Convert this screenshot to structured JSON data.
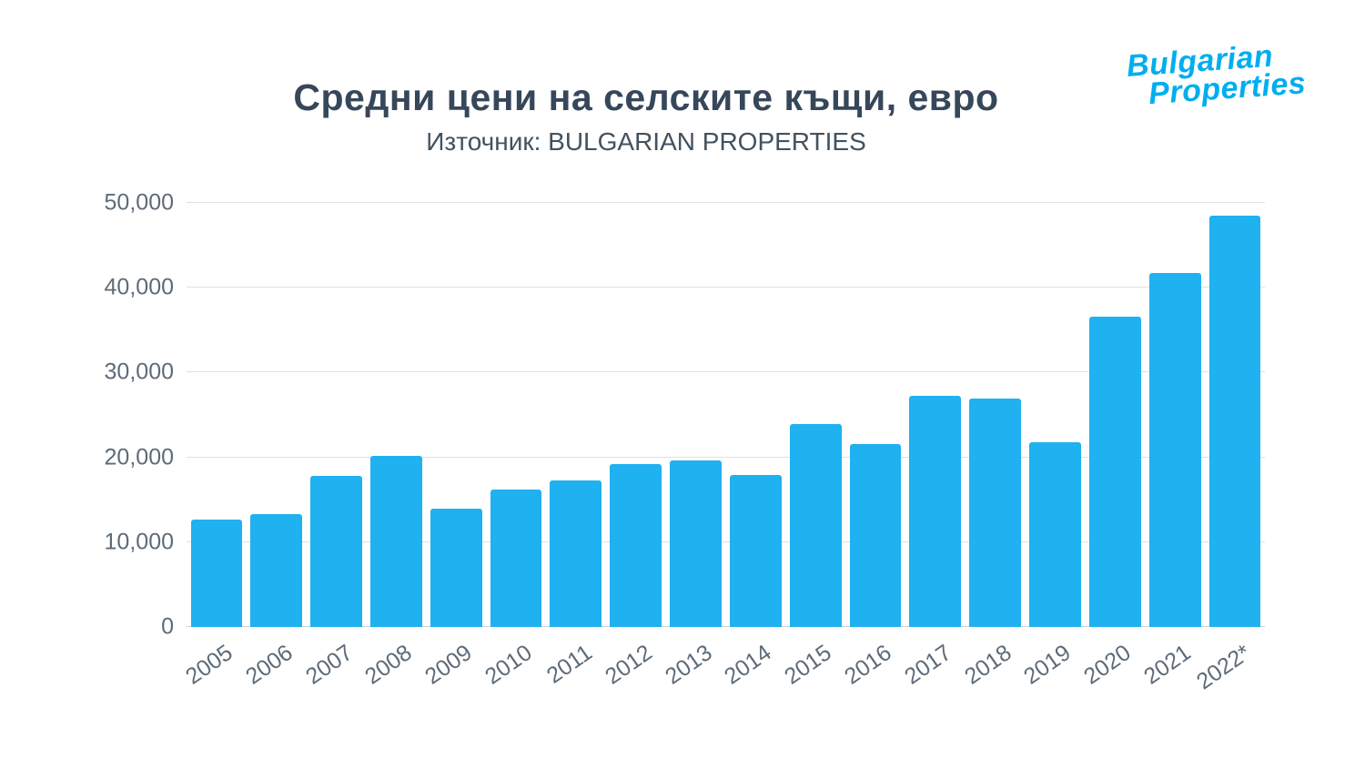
{
  "header": {
    "title": "Средни цени на селските къщи, евро",
    "subtitle": "Източник: BULGARIAN PROPERTIES"
  },
  "logo": {
    "line1": "Bulgarian",
    "line2": "Properties",
    "color": "#00AEEF"
  },
  "chart_data": {
    "type": "bar",
    "title": "Средни цени на селските къщи, евро",
    "subtitle": "Източник: BULGARIAN PROPERTIES",
    "categories": [
      "2005",
      "2006",
      "2007",
      "2008",
      "2009",
      "2010",
      "2011",
      "2012",
      "2013",
      "2014",
      "2015",
      "2016",
      "2017",
      "2018",
      "2019",
      "2020",
      "2021",
      "2022*"
    ],
    "values": [
      12700,
      13300,
      17800,
      20200,
      13900,
      16200,
      17300,
      19200,
      19600,
      17900,
      23900,
      21600,
      27300,
      26900,
      21800,
      36600,
      41700,
      48500
    ],
    "xlabel": "",
    "ylabel": "",
    "ylim": [
      0,
      50000
    ],
    "yticks": [
      0,
      10000,
      20000,
      30000,
      40000,
      50000
    ],
    "ytick_labels": [
      "0",
      "10,000",
      "20,000",
      "30,000",
      "40,000",
      "50,000"
    ],
    "bar_color": "#1FB1F0",
    "grid": true,
    "legend": false
  },
  "colors": {
    "title_text": "#37475A",
    "axis_text": "#5D6B79",
    "gridline": "#DEE1E5",
    "background": "#FFFFFF"
  }
}
